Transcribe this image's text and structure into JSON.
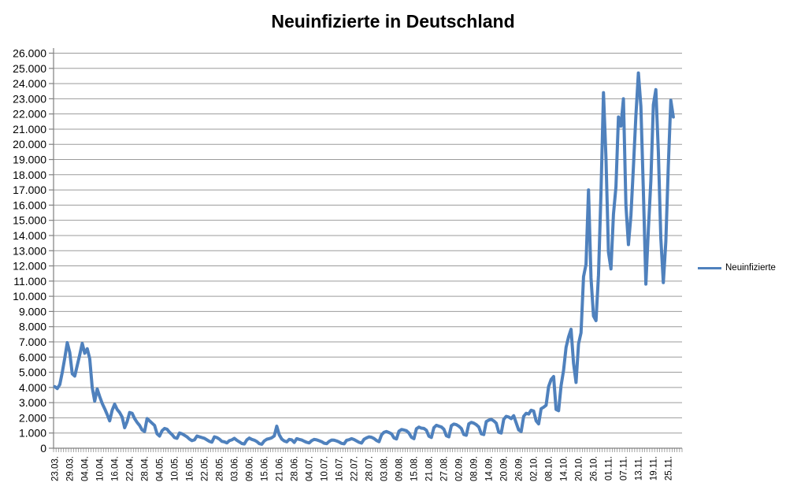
{
  "title": "Neuinfizierte in Deutschland",
  "legend": {
    "label": "Neuinfizierte"
  },
  "colors": {
    "series": "#4F81BD",
    "gridline": "#9B9B9B",
    "axis": "#808080",
    "text": "#000000",
    "background": "#FFFFFF"
  },
  "chart_data": {
    "type": "line",
    "title": "Neuinfizierte in Deutschland",
    "xlabel": "",
    "ylabel": "",
    "ylim": [
      0,
      26000
    ],
    "y_tick_step": 1000,
    "grid": "horizontal",
    "legend_position": "right",
    "y_tick_labels": [
      "0",
      "1.000",
      "2.000",
      "3.000",
      "4.000",
      "5.000",
      "6.000",
      "7.000",
      "8.000",
      "9.000",
      "10.000",
      "11.000",
      "12.000",
      "13.000",
      "14.000",
      "15.000",
      "16.000",
      "17.000",
      "18.000",
      "19.000",
      "20.000",
      "21.000",
      "22.000",
      "23.000",
      "24.000",
      "25.000",
      "26.000"
    ],
    "x_tick_labels": [
      "23.03.",
      "29.03.",
      "04.04.",
      "10.04.",
      "16.04.",
      "22.04.",
      "28.04.",
      "04.05.",
      "10.05.",
      "16.05.",
      "22.05.",
      "28.05.",
      "03.06.",
      "09.06.",
      "15.06.",
      "21.06.",
      "28.06.",
      "04.07.",
      "10.07.",
      "16.07.",
      "22.07.",
      "28.07.",
      "03.08.",
      "09.08.",
      "15.08.",
      "21.08.",
      "27.08.",
      "02.09.",
      "08.09.",
      "14.09.",
      "20.09.",
      "26.09.",
      "02.10.",
      "08.10.",
      "14.10.",
      "20.10.",
      "26.10.",
      "01.11.",
      "07.11.",
      "13.11.",
      "19.11.",
      "25.11."
    ],
    "label_every_n_points": 6,
    "series": [
      {
        "name": "Neuinfizierte",
        "color": "#4F81BD",
        "values": [
          4050,
          3930,
          4190,
          5000,
          5940,
          6950,
          6300,
          4900,
          4750,
          5450,
          6150,
          6900,
          6250,
          6550,
          5900,
          4000,
          3100,
          3900,
          3400,
          2950,
          2600,
          2220,
          1800,
          2500,
          2900,
          2550,
          2350,
          2050,
          1350,
          1750,
          2350,
          2300,
          1950,
          1700,
          1500,
          1200,
          1100,
          1950,
          1800,
          1650,
          1500,
          950,
          800,
          1150,
          1300,
          1250,
          1050,
          900,
          700,
          650,
          1000,
          950,
          850,
          750,
          600,
          500,
          550,
          800,
          750,
          700,
          650,
          550,
          450,
          400,
          750,
          700,
          600,
          450,
          420,
          350,
          500,
          550,
          650,
          520,
          420,
          310,
          280,
          550,
          670,
          580,
          530,
          440,
          300,
          260,
          480,
          590,
          630,
          690,
          810,
          1450,
          880,
          600,
          480,
          420,
          580,
          550,
          380,
          630,
          580,
          540,
          460,
          390,
          350,
          500,
          580,
          550,
          490,
          430,
          330,
          300,
          450,
          540,
          530,
          480,
          410,
          320,
          290,
          520,
          560,
          630,
          570,
          480,
          390,
          340,
          590,
          680,
          750,
          720,
          640,
          510,
          430,
          880,
          1050,
          1100,
          1030,
          950,
          680,
          610,
          1120,
          1230,
          1200,
          1150,
          1000,
          720,
          630,
          1280,
          1390,
          1320,
          1300,
          1180,
          790,
          710,
          1350,
          1510,
          1450,
          1400,
          1250,
          820,
          750,
          1480,
          1590,
          1550,
          1450,
          1300,
          900,
          850,
          1600,
          1700,
          1650,
          1550,
          1400,
          950,
          900,
          1750,
          1850,
          1900,
          1800,
          1650,
          1050,
          1000,
          1900,
          2100,
          2050,
          1950,
          2140,
          1670,
          1200,
          1100,
          2100,
          2300,
          2250,
          2500,
          2450,
          1800,
          1600,
          2600,
          2700,
          2830,
          4060,
          4520,
          4720,
          2550,
          2470,
          4120,
          5130,
          6640,
          7330,
          7830,
          5590,
          4330,
          6870,
          7600,
          11290,
          12100,
          17000,
          11200,
          8700,
          8400,
          11400,
          16800,
          23400,
          19100,
          12900,
          11800,
          15400,
          17200,
          21800,
          21200,
          23000,
          16000,
          13400,
          15300,
          18500,
          21900,
          24700,
          22500,
          16900,
          10800,
          14400,
          17600,
          22600,
          23600,
          19500,
          13800,
          10900,
          13600,
          18600,
          22900,
          21800
        ]
      }
    ]
  }
}
